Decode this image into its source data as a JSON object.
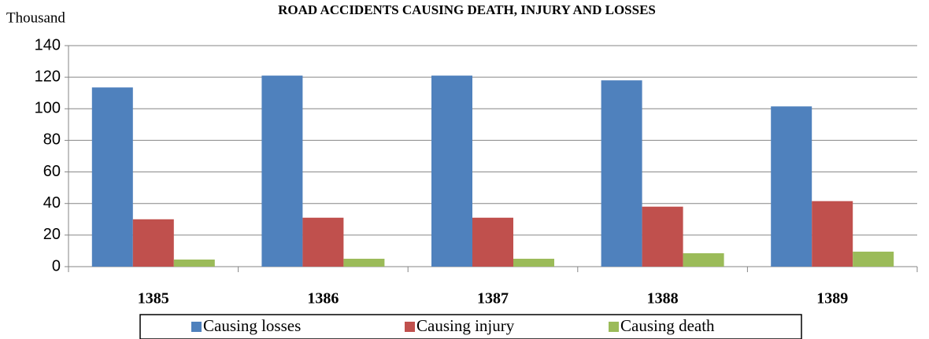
{
  "chart_data": {
    "type": "bar",
    "title": "ROAD ACCIDENTS CAUSING DEATH, INJURY AND LOSSES",
    "y_label": "Thousand",
    "categories": [
      "1385",
      "1386",
      "1387",
      "1388",
      "1389"
    ],
    "series": [
      {
        "name": "Causing losses",
        "color": "#4f81bd",
        "values": [
          113.5,
          121,
          121,
          118,
          101.5
        ]
      },
      {
        "name": "Causing injury",
        "color": "#c0504d",
        "values": [
          30,
          31,
          31,
          38,
          41.5
        ]
      },
      {
        "name": "Causing death",
        "color": "#9bbb59",
        "values": [
          4.5,
          5,
          5,
          8.5,
          9.5
        ]
      }
    ],
    "ylim": [
      0,
      140
    ],
    "yticks": [
      0,
      20,
      40,
      60,
      80,
      100,
      120,
      140
    ],
    "grid": true,
    "legend": "bottom"
  }
}
